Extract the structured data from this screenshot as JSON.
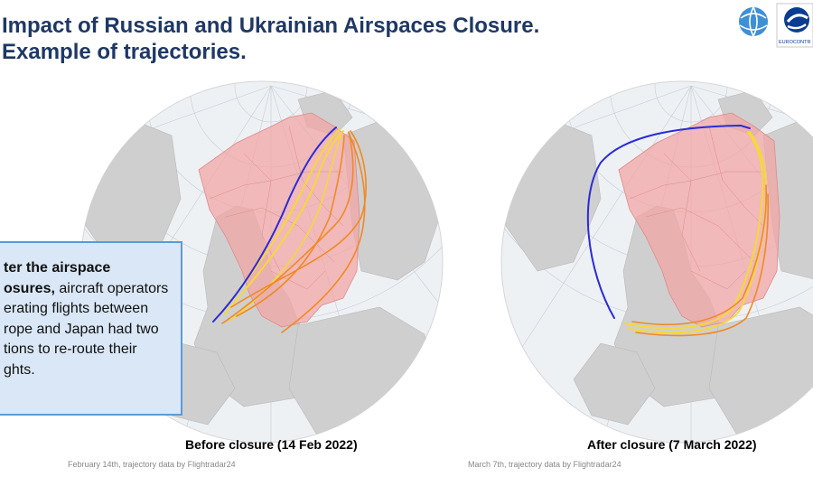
{
  "header": {
    "title": "Impact of Russian and Ukrainian Airspaces Closure.\nExample of trajectories.",
    "logo_text": "EUROCONTR"
  },
  "callout": {
    "bold_text": "ter the airspace\nosures,",
    "normal_text": " aircraft operators\nerating flights between\nrope and Japan had two\ntions to re-route their\nghts."
  },
  "maps": [
    {
      "caption": "Before closure (14 Feb 2022)",
      "source": "February 14th, trajectory data by Flightradar24"
    },
    {
      "caption": "After closure (7 March 2022)",
      "source": "March 7th, trajectory data by Flightradar24"
    }
  ],
  "colors": {
    "title": "#1f3864",
    "ocean": "#eef1f4",
    "land": "#cfcfcf",
    "closed_airspace": "#f2a6a6",
    "route_blue": "#2b2bd6",
    "route_orange": "#f08a24",
    "route_yellow": "#f5d83a",
    "callout_fill": "#d9e7f6",
    "callout_border": "#5b9bd5"
  }
}
